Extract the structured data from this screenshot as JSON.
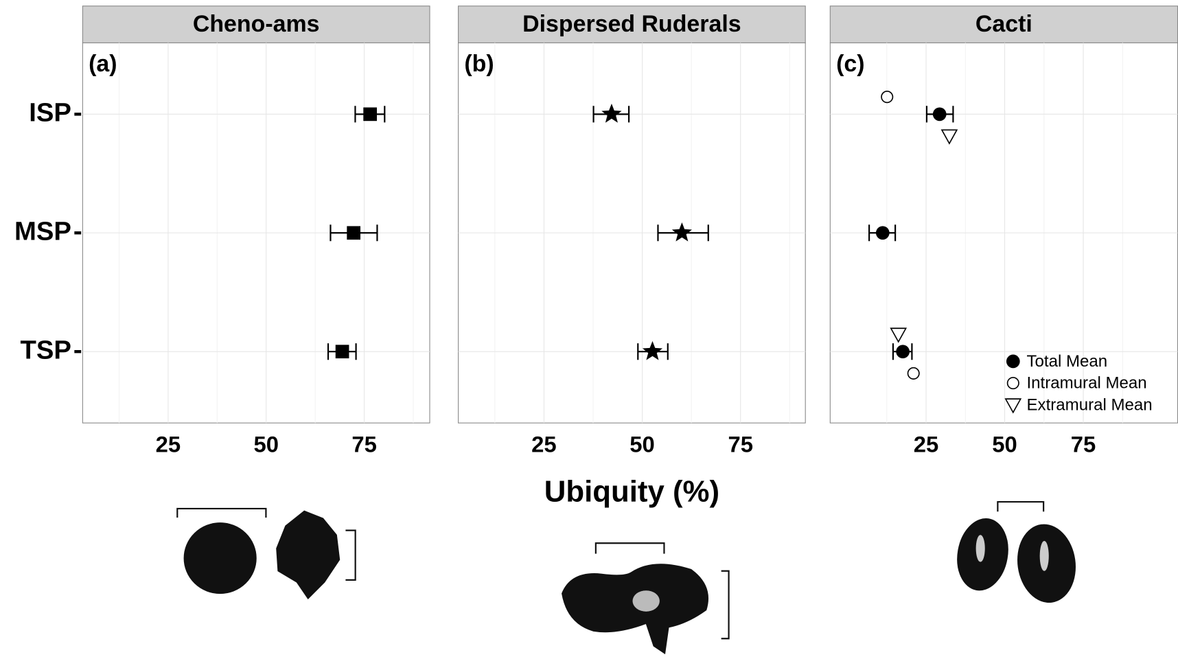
{
  "chart_data": [
    {
      "type": "dot",
      "title": "Cheno-ams",
      "panel_label": "(a)",
      "categories": [
        "ISP",
        "MSP",
        "TSP"
      ],
      "xlim": [
        3.2,
        91.7
      ],
      "xticks": [
        25,
        50,
        75
      ],
      "grid": true,
      "series": [
        {
          "marker": "square",
          "color": "#000000",
          "values": [
            76.5,
            72.3,
            69.4
          ],
          "lower": [
            72.7,
            66.4,
            65.8
          ],
          "upper": [
            80.2,
            78.3,
            72.9
          ]
        }
      ]
    },
    {
      "type": "dot",
      "title": "Dispersed Ruderals",
      "panel_label": "(b)",
      "x_label": "Ubiquity (%)",
      "xlim": [
        3.2,
        91.5
      ],
      "xticks": [
        25,
        50,
        75
      ],
      "grid": true,
      "series": [
        {
          "marker": "star",
          "color": "#000000",
          "values": [
            42.2,
            60.1,
            52.6
          ],
          "lower": [
            37.6,
            54.0,
            48.9
          ],
          "upper": [
            46.6,
            66.8,
            56.5
          ]
        }
      ]
    },
    {
      "type": "dot",
      "title": "Cacti",
      "panel_label": "(c)",
      "xlim": [
        -5.5,
        105
      ],
      "xticks": [
        25,
        50,
        75
      ],
      "grid": true,
      "legend": "lower right",
      "series": [
        {
          "name": "Total Mean",
          "marker": "circle",
          "color": "#000000",
          "values": [
            29.3,
            11.2,
            17.6
          ],
          "lower": [
            25.2,
            6.9,
            14.5
          ],
          "upper": [
            33.6,
            15.2,
            20.5
          ]
        },
        {
          "name": "Intramural Mean",
          "marker": "open-circle",
          "color": "#000000",
          "values": [
            12.6,
            null,
            21.0
          ]
        },
        {
          "name": "Extramural  Mean",
          "marker": "open-triangle",
          "color": "#000000",
          "values": [
            32.4,
            null,
            16.2
          ]
        }
      ]
    }
  ]
}
